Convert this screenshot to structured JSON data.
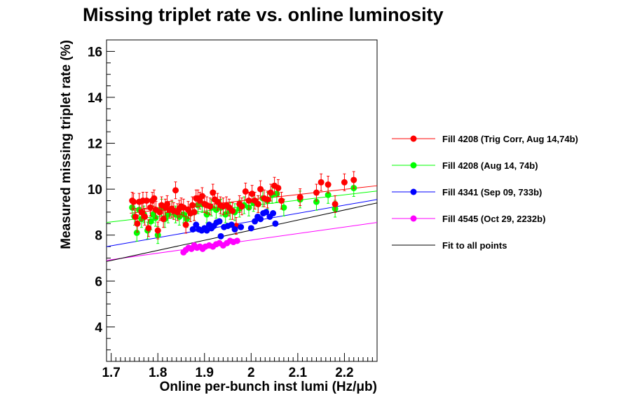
{
  "chart_data": {
    "type": "scatter",
    "title": "Missing triplet rate vs. online luminosity",
    "xlabel": "Online per-bunch inst lumi (Hz/μb)",
    "ylabel": "Measured missing triplet rate (%)",
    "xlim": [
      1.69,
      2.27
    ],
    "ylim": [
      2.5,
      16.5
    ],
    "xticks": [
      "1.7",
      "1.8",
      "1.9",
      "2",
      "2.1",
      "2.2"
    ],
    "yticks": [
      "4",
      "6",
      "8",
      "10",
      "12",
      "14",
      "16"
    ],
    "legend_position": "right",
    "series": [
      {
        "name": "Fill 4208 (Trig Corr, Aug 14,74b)",
        "color": "#ff0000",
        "errorbars": true,
        "points": [
          [
            1.745,
            9.5
          ],
          [
            1.748,
            9.45
          ],
          [
            1.752,
            8.8
          ],
          [
            1.756,
            8.5
          ],
          [
            1.76,
            9.45
          ],
          [
            1.765,
            9.0
          ],
          [
            1.768,
            9.5
          ],
          [
            1.772,
            8.8
          ],
          [
            1.776,
            9.5
          ],
          [
            1.78,
            8.3
          ],
          [
            1.784,
            9.2
          ],
          [
            1.788,
            9.5
          ],
          [
            1.792,
            9.6
          ],
          [
            1.796,
            9.1
          ],
          [
            1.8,
            8.2
          ],
          [
            1.804,
            9.0
          ],
          [
            1.808,
            9.3
          ],
          [
            1.812,
            8.7
          ],
          [
            1.816,
            9.2
          ],
          [
            1.82,
            9.35
          ],
          [
            1.825,
            9.1
          ],
          [
            1.83,
            9.15
          ],
          [
            1.834,
            9.05
          ],
          [
            1.838,
            9.95
          ],
          [
            1.842,
            9.0
          ],
          [
            1.846,
            9.15
          ],
          [
            1.85,
            9.25
          ],
          [
            1.855,
            9.2
          ],
          [
            1.86,
            8.45
          ],
          [
            1.865,
            9.1
          ],
          [
            1.87,
            8.95
          ],
          [
            1.874,
            9.3
          ],
          [
            1.878,
            9.0
          ],
          [
            1.882,
            9.6
          ],
          [
            1.886,
            9.6
          ],
          [
            1.89,
            9.5
          ],
          [
            1.895,
            9.7
          ],
          [
            1.9,
            9.35
          ],
          [
            1.905,
            9.3
          ],
          [
            1.912,
            9.25
          ],
          [
            1.918,
            9.85
          ],
          [
            1.922,
            9.55
          ],
          [
            1.928,
            9.45
          ],
          [
            1.934,
            9.3
          ],
          [
            1.94,
            9.25
          ],
          [
            1.947,
            9.3
          ],
          [
            1.953,
            9.2
          ],
          [
            1.96,
            9.05
          ],
          [
            1.968,
            8.4
          ],
          [
            1.975,
            9.35
          ],
          [
            1.98,
            9.25
          ],
          [
            1.988,
            9.9
          ],
          [
            1.995,
            9.5
          ],
          [
            2.002,
            9.8
          ],
          [
            2.008,
            9.5
          ],
          [
            2.015,
            9.35
          ],
          [
            2.02,
            10.0
          ],
          [
            2.028,
            9.6
          ],
          [
            2.035,
            9.55
          ],
          [
            2.042,
            9.85
          ],
          [
            2.05,
            10.15
          ],
          [
            2.058,
            10.05
          ],
          [
            2.065,
            9.5
          ],
          [
            2.105,
            9.65
          ],
          [
            2.14,
            9.85
          ],
          [
            2.15,
            10.3
          ],
          [
            2.165,
            10.2
          ],
          [
            2.18,
            9.35
          ],
          [
            2.2,
            10.3
          ],
          [
            2.22,
            10.4
          ]
        ]
      },
      {
        "name": "Fill 4208 (Aug 14, 74b)",
        "color": "#00ff00",
        "errorbars": true,
        "points": [
          [
            1.745,
            9.2
          ],
          [
            1.75,
            8.8
          ],
          [
            1.755,
            8.1
          ],
          [
            1.76,
            9.1
          ],
          [
            1.765,
            8.7
          ],
          [
            1.77,
            8.9
          ],
          [
            1.778,
            8.2
          ],
          [
            1.785,
            8.6
          ],
          [
            1.79,
            8.9
          ],
          [
            1.795,
            8.75
          ],
          [
            1.8,
            8.0
          ],
          [
            1.808,
            9.2
          ],
          [
            1.815,
            8.7
          ],
          [
            1.822,
            8.9
          ],
          [
            1.83,
            9.1
          ],
          [
            1.838,
            8.9
          ],
          [
            1.846,
            8.8
          ],
          [
            1.855,
            8.9
          ],
          [
            1.862,
            8.7
          ],
          [
            1.87,
            8.95
          ],
          [
            1.878,
            9.0
          ],
          [
            1.886,
            9.3
          ],
          [
            1.895,
            9.35
          ],
          [
            1.905,
            8.9
          ],
          [
            1.915,
            9.2
          ],
          [
            1.925,
            9.1
          ],
          [
            1.935,
            9.2
          ],
          [
            1.945,
            8.9
          ],
          [
            1.955,
            9.05
          ],
          [
            1.965,
            9.0
          ],
          [
            1.975,
            9.15
          ],
          [
            1.985,
            9.3
          ],
          [
            1.995,
            9.2
          ],
          [
            2.005,
            9.4
          ],
          [
            2.015,
            9.35
          ],
          [
            2.025,
            9.6
          ],
          [
            2.035,
            9.5
          ],
          [
            2.045,
            9.75
          ],
          [
            2.055,
            9.8
          ],
          [
            2.07,
            9.2
          ],
          [
            2.105,
            9.55
          ],
          [
            2.14,
            9.45
          ],
          [
            2.165,
            9.75
          ],
          [
            2.18,
            9.15
          ],
          [
            2.22,
            10.05
          ]
        ]
      },
      {
        "name": "Fill 4341 (Sep 09, 733b)",
        "color": "#0000ff",
        "errorbars": false,
        "points": [
          [
            1.875,
            8.25
          ],
          [
            1.882,
            8.45
          ],
          [
            1.888,
            8.25
          ],
          [
            1.894,
            8.2
          ],
          [
            1.9,
            8.3
          ],
          [
            1.905,
            8.2
          ],
          [
            1.91,
            8.45
          ],
          [
            1.915,
            8.3
          ],
          [
            1.92,
            8.4
          ],
          [
            1.926,
            8.55
          ],
          [
            1.932,
            8.6
          ],
          [
            1.935,
            7.95
          ],
          [
            1.942,
            8.35
          ],
          [
            1.95,
            8.4
          ],
          [
            1.958,
            8.45
          ],
          [
            1.965,
            8.25
          ],
          [
            1.978,
            8.35
          ],
          [
            2.0,
            8.3
          ],
          [
            2.008,
            8.6
          ],
          [
            2.014,
            8.8
          ],
          [
            2.02,
            8.7
          ],
          [
            2.026,
            8.95
          ],
          [
            2.032,
            9.0
          ],
          [
            2.04,
            8.8
          ],
          [
            2.047,
            8.95
          ],
          [
            2.052,
            8.5
          ]
        ]
      },
      {
        "name": "Fill 4545 (Oct 29, 2232b)",
        "color": "#ff00ff",
        "errorbars": false,
        "points": [
          [
            1.855,
            7.25
          ],
          [
            1.86,
            7.35
          ],
          [
            1.866,
            7.45
          ],
          [
            1.872,
            7.4
          ],
          [
            1.878,
            7.55
          ],
          [
            1.884,
            7.45
          ],
          [
            1.89,
            7.5
          ],
          [
            1.896,
            7.4
          ],
          [
            1.902,
            7.5
          ],
          [
            1.91,
            7.55
          ],
          [
            1.918,
            7.5
          ],
          [
            1.925,
            7.6
          ],
          [
            1.932,
            7.65
          ],
          [
            1.94,
            7.55
          ],
          [
            1.948,
            7.65
          ],
          [
            1.955,
            7.75
          ],
          [
            1.962,
            7.7
          ],
          [
            1.97,
            7.75
          ]
        ]
      }
    ],
    "fits": [
      {
        "name": "Fill 4208 (Trig Corr, Aug 14,74b)",
        "color": "#ff0000",
        "x": [
          1.74,
          2.27
        ],
        "y": [
          8.95,
          10.15
        ]
      },
      {
        "name": "Fill 4208 (Aug 14, 74b)",
        "color": "#00ff00",
        "x": [
          1.69,
          2.27
        ],
        "y": [
          8.55,
          9.92
        ]
      },
      {
        "name": "Fill 4341 (Sep 09, 733b)",
        "color": "#0000ff",
        "x": [
          1.69,
          2.27
        ],
        "y": [
          7.5,
          9.55
        ]
      },
      {
        "name": "Fill 4545 (Oct 29, 2232b)",
        "color": "#ff00ff",
        "x": [
          1.69,
          2.27
        ],
        "y": [
          6.9,
          8.55
        ]
      },
      {
        "name": "Fit to all points",
        "color": "#000000",
        "x": [
          1.69,
          2.27
        ],
        "y": [
          6.85,
          9.4
        ]
      }
    ],
    "legend": [
      {
        "label": "Fill 4208 (Trig Corr, Aug 14,74b)",
        "color": "#ff0000",
        "marker": true
      },
      {
        "label": "Fill 4208 (Aug 14, 74b)",
        "color": "#00ff00",
        "marker": true
      },
      {
        "label": "Fill 4341 (Sep 09, 733b)",
        "color": "#0000ff",
        "marker": true
      },
      {
        "label": "Fill 4545 (Oct 29, 2232b)",
        "color": "#ff00ff",
        "marker": true
      },
      {
        "label": "Fit to all points",
        "color": "#000000",
        "marker": false
      }
    ]
  }
}
